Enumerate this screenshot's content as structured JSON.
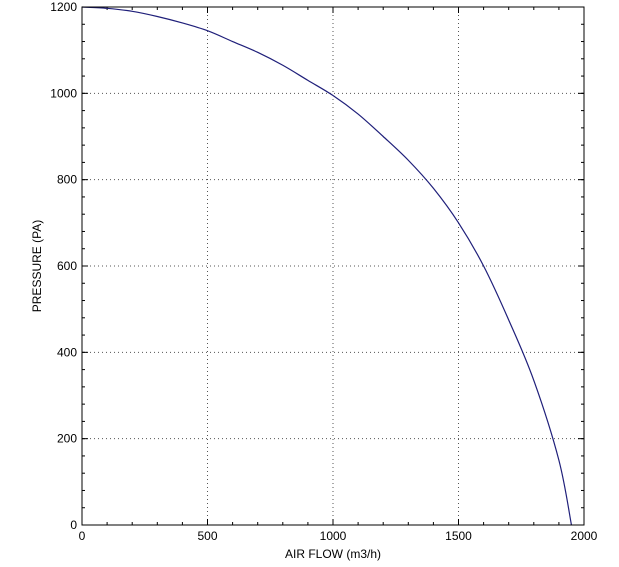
{
  "chart_data": {
    "type": "line",
    "title": "",
    "xlabel": "AIR FLOW (m3/h)",
    "ylabel": "PRESSURE (PA)",
    "xlim": [
      0,
      2000
    ],
    "ylim": [
      0,
      1200
    ],
    "x_ticks": [
      0,
      500,
      1000,
      1500,
      2000
    ],
    "y_ticks": [
      0,
      200,
      400,
      600,
      800,
      1000,
      1200
    ],
    "x_minor_step": 100,
    "y_minor_step": 40,
    "grid": true,
    "line_color": "#1f1f7a",
    "series": [
      {
        "x": [
          0,
          100,
          200,
          300,
          400,
          500,
          600,
          700,
          800,
          900,
          1000,
          1100,
          1200,
          1300,
          1400,
          1500,
          1600,
          1700,
          1800,
          1900,
          1950
        ],
        "y": [
          1200,
          1197,
          1190,
          1178,
          1163,
          1145,
          1120,
          1095,
          1065,
          1030,
          995,
          952,
          900,
          845,
          780,
          700,
          600,
          475,
          335,
          150,
          0
        ]
      }
    ]
  }
}
